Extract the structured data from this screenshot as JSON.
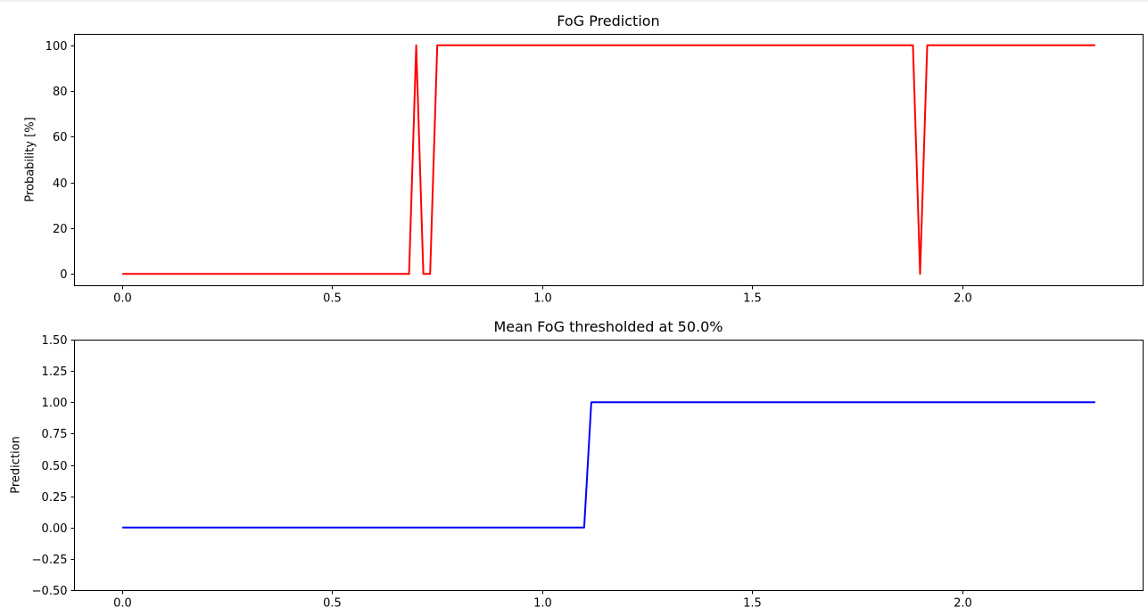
{
  "chart_data": [
    {
      "type": "line",
      "title": "FoG Prediction",
      "xlabel": "",
      "ylabel": "Probability [%]",
      "xlim": [
        -0.115,
        2.43
      ],
      "ylim": [
        -5,
        105
      ],
      "xticks": [
        0.0,
        0.5,
        1.0,
        1.5,
        2.0
      ],
      "xtick_labels": [
        "0.0",
        "0.5",
        "1.0",
        "1.5",
        "2.0"
      ],
      "yticks": [
        0,
        20,
        40,
        60,
        80,
        100
      ],
      "ytick_labels": [
        "0",
        "20",
        "40",
        "60",
        "80",
        "100"
      ],
      "grid": false,
      "series": [
        {
          "color": "#ff0000",
          "x": [
            0.0,
            0.683,
            0.7,
            0.717,
            0.733,
            0.75,
            1.883,
            1.9,
            1.917,
            2.317
          ],
          "y": [
            0,
            0,
            100,
            0,
            0,
            100,
            100,
            0,
            100,
            100
          ]
        }
      ]
    },
    {
      "type": "line",
      "title": "Mean FoG thresholded at 50.0%",
      "xlabel": "",
      "ylabel": "Prediction",
      "xlim": [
        -0.115,
        2.43
      ],
      "ylim": [
        -0.5,
        1.5
      ],
      "xticks": [
        0.0,
        0.5,
        1.0,
        1.5,
        2.0
      ],
      "xtick_labels": [
        "0.0",
        "0.5",
        "1.0",
        "1.5",
        "2.0"
      ],
      "yticks": [
        -0.5,
        -0.25,
        0.0,
        0.25,
        0.5,
        0.75,
        1.0,
        1.25,
        1.5
      ],
      "ytick_labels": [
        "−0.50",
        "−0.25",
        "0.00",
        "0.25",
        "0.50",
        "0.75",
        "1.00",
        "1.25",
        "1.50"
      ],
      "grid": false,
      "series": [
        {
          "color": "#0000ff",
          "x": [
            0.0,
            1.1,
            1.117,
            2.317
          ],
          "y": [
            0,
            0,
            1,
            1
          ]
        }
      ]
    }
  ]
}
